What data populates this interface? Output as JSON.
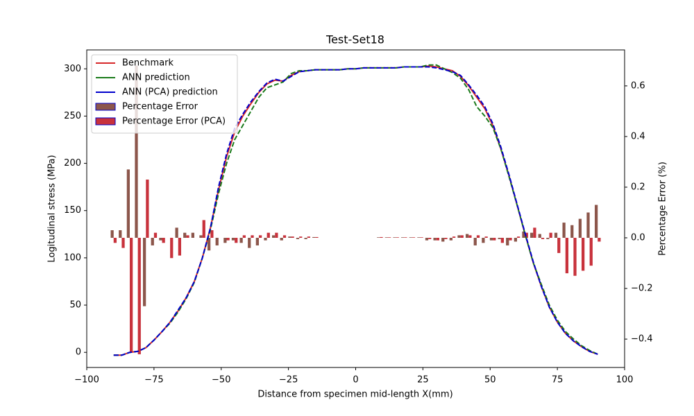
{
  "chart_data": {
    "type": "combo",
    "title": "Test-Set18",
    "xlabel": "Distance from specimen mid-length X(mm)",
    "ylabel": "Logitudinal stress (MPa)",
    "y2label": "Percentage Error (%)",
    "xlim": [
      -100,
      100
    ],
    "ylim": [
      -16,
      320
    ],
    "y2lim": [
      -0.512,
      0.742
    ],
    "xticks": [
      {
        "value": -100,
        "label": "−100"
      },
      {
        "value": -75,
        "label": "−75"
      },
      {
        "value": -50,
        "label": "−50"
      },
      {
        "value": -25,
        "label": "−25"
      },
      0,
      25,
      50,
      75,
      100
    ],
    "yticks": [
      0,
      50,
      100,
      150,
      200,
      250,
      300
    ],
    "y2ticks": [
      {
        "value": -0.4,
        "label": "−0.4"
      },
      {
        "value": -0.2,
        "label": "−0.2"
      },
      {
        "value": 0,
        "label": "0.0"
      },
      0.2,
      0.4,
      0.6
    ],
    "legend": "upper left",
    "x": [
      -90,
      -87,
      -84,
      -81,
      -78,
      -75,
      -72,
      -69,
      -66,
      -63,
      -60,
      -57,
      -54,
      -51,
      -48,
      -45,
      -42,
      -39,
      -36,
      -33,
      -30,
      -27,
      -24,
      -21,
      -18,
      -15,
      -12,
      -9,
      -6,
      -3,
      0,
      3,
      6,
      9,
      12,
      15,
      18,
      21,
      24,
      27,
      30,
      33,
      36,
      39,
      42,
      45,
      48,
      51,
      54,
      57,
      60,
      63,
      66,
      69,
      72,
      75,
      78,
      81,
      84,
      87,
      90
    ],
    "series": [
      {
        "name": "Benchmark",
        "type": "line",
        "color": "#d62728",
        "dash": false,
        "values": [
          -3,
          -3,
          0,
          1,
          5,
          13,
          22,
          32,
          44,
          58,
          75,
          100,
          132,
          172,
          207,
          233,
          250,
          263,
          275,
          284,
          288,
          287,
          293,
          297,
          298,
          299,
          299,
          299,
          299,
          300,
          300,
          301,
          301,
          301,
          301,
          301,
          302,
          302,
          302,
          303,
          302,
          300,
          298,
          292,
          282,
          270,
          258,
          240,
          215,
          187,
          156,
          125,
          95,
          70,
          48,
          32,
          20,
          12,
          6,
          1,
          -2
        ]
      },
      {
        "name": "ANN prediction",
        "type": "line",
        "color": "#1a7a1a",
        "dash": true,
        "values": [
          -3,
          -3,
          0,
          1,
          5,
          13,
          22,
          31,
          43,
          57,
          74,
          100,
          130,
          168,
          200,
          225,
          240,
          255,
          270,
          280,
          283,
          286,
          295,
          298,
          298,
          299,
          299,
          299,
          299,
          300,
          300,
          301,
          301,
          301,
          301,
          301,
          302,
          302,
          302,
          304,
          304,
          300,
          296,
          290,
          278,
          260,
          250,
          238,
          215,
          186,
          156,
          125,
          95,
          72,
          50,
          34,
          22,
          14,
          7,
          2,
          -2
        ]
      },
      {
        "name": "ANN (PCA) prediction",
        "type": "line",
        "color": "#0000cc",
        "dash": true,
        "values": [
          -3,
          -3,
          0,
          1,
          5,
          13,
          22,
          32,
          45,
          58,
          75,
          100,
          132,
          175,
          210,
          237,
          252,
          265,
          276,
          285,
          289,
          287,
          292,
          297,
          298,
          299,
          299,
          299,
          299,
          300,
          300,
          301,
          301,
          301,
          301,
          301,
          302,
          302,
          302,
          302,
          301,
          299,
          297,
          293,
          283,
          272,
          260,
          242,
          217,
          188,
          157,
          126,
          96,
          70,
          48,
          32,
          20,
          12,
          6,
          1,
          -2
        ]
      },
      {
        "name": "Percentage Error",
        "type": "bar",
        "axis": "y2",
        "color": "#8c564b",
        "edgecolor": "#0000cc",
        "offset": -1,
        "values": [
          0.03,
          0.03,
          0.27,
          0.68,
          -0.27,
          -0.03,
          -0.01,
          0.0,
          0.04,
          0.02,
          0.02,
          0.01,
          -0.05,
          -0.03,
          -0.02,
          -0.01,
          -0.02,
          -0.04,
          -0.03,
          -0.01,
          0.01,
          -0.01,
          0.005,
          -0.005,
          -0.005,
          0.003,
          null,
          null,
          null,
          null,
          null,
          null,
          null,
          0.002,
          0.002,
          0.002,
          0.002,
          0.002,
          0.002,
          -0.01,
          -0.01,
          -0.015,
          -0.01,
          0.01,
          0.015,
          -0.03,
          -0.02,
          -0.01,
          -0.005,
          -0.03,
          -0.015,
          0.025,
          0.02,
          0.015,
          -0.005,
          0.02,
          0.06,
          0.05,
          0.075,
          0.1,
          0.13
        ]
      },
      {
        "name": "Percentage Error (PCA)",
        "type": "bar",
        "axis": "y2",
        "color": "#c8323c",
        "edgecolor": "#0000cc",
        "offset": 1,
        "values": [
          -0.02,
          -0.04,
          -0.45,
          -0.46,
          0.23,
          0.02,
          -0.02,
          -0.08,
          -0.07,
          0.01,
          0.0,
          0.07,
          0.03,
          0.0,
          -0.01,
          -0.02,
          0.01,
          0.01,
          0.01,
          0.02,
          0.02,
          0.01,
          0.005,
          0.005,
          0.005,
          0.003,
          null,
          null,
          null,
          null,
          null,
          null,
          null,
          0.003,
          0.002,
          0.002,
          0.002,
          0.002,
          0.002,
          -0.005,
          -0.01,
          -0.005,
          0.005,
          0.01,
          0.01,
          0.01,
          0.005,
          -0.01,
          -0.02,
          -0.01,
          0.005,
          0.02,
          0.04,
          -0.005,
          0.02,
          -0.06,
          -0.14,
          -0.15,
          -0.13,
          -0.11,
          -0.015
        ]
      }
    ]
  }
}
